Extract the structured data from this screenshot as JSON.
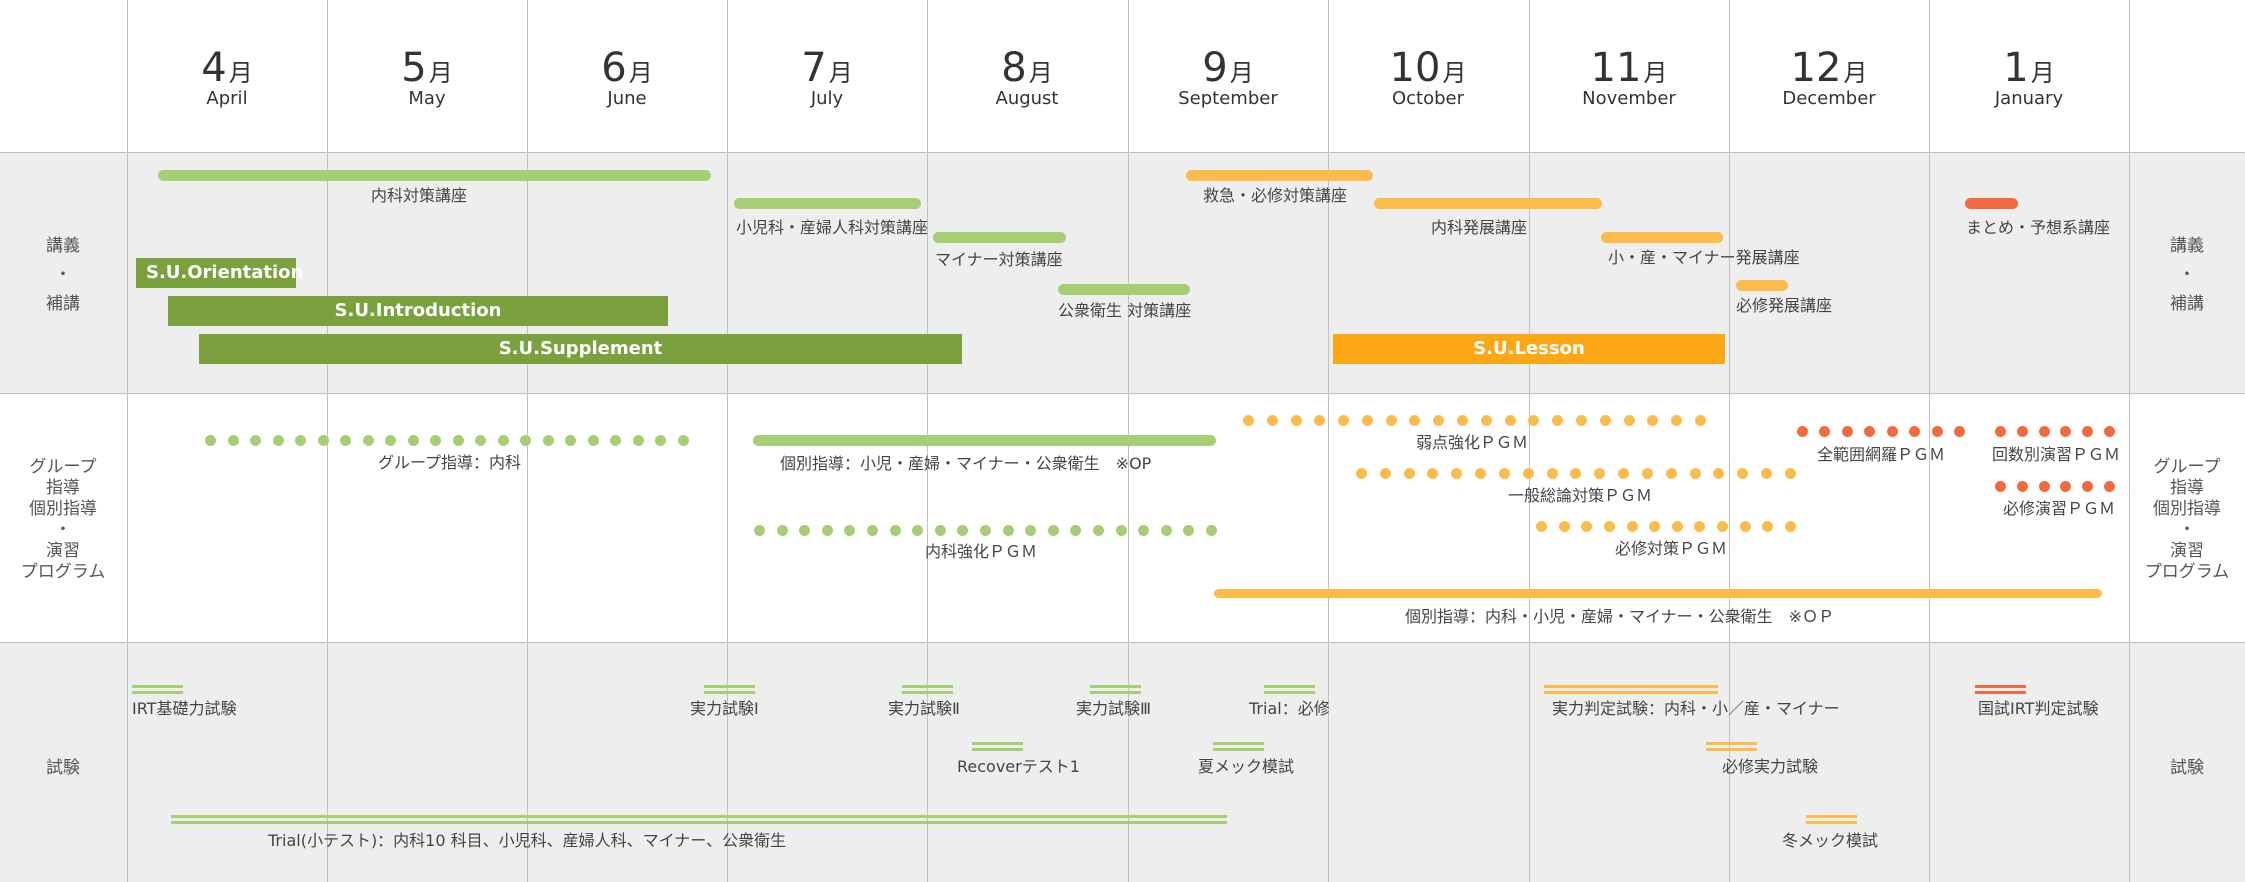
{
  "colors": {
    "light_green": "#a6ce74",
    "dark_green": "#7aa13e",
    "light_orange": "#fcbc4c",
    "dark_orange": "#fca715",
    "red": "#f26b40",
    "shade": "#eeeeee"
  },
  "months": [
    {
      "num": "4",
      "kanji": "月",
      "en": "April"
    },
    {
      "num": "5",
      "kanji": "月",
      "en": "May"
    },
    {
      "num": "6",
      "kanji": "月",
      "en": "June"
    },
    {
      "num": "7",
      "kanji": "月",
      "en": "July"
    },
    {
      "num": "8",
      "kanji": "月",
      "en": "August"
    },
    {
      "num": "9",
      "kanji": "月",
      "en": "September"
    },
    {
      "num": "10",
      "kanji": "月",
      "en": "October"
    },
    {
      "num": "11",
      "kanji": "月",
      "en": "November"
    },
    {
      "num": "12",
      "kanji": "月",
      "en": "December"
    },
    {
      "num": "1",
      "kanji": "月",
      "en": "January"
    }
  ],
  "row_labels": {
    "lecture": [
      "講義",
      "・",
      "補講"
    ],
    "group": [
      "グループ",
      "指導",
      "個別指導",
      "・",
      "演習",
      "プログラム"
    ],
    "exam": [
      "試験"
    ]
  },
  "lectures": {
    "naika_taisaku": "内科対策講座",
    "shouni_sanfu": "小児科・産婦人科対策講座",
    "minor_taisaku": "マイナー対策講座",
    "koshu_eisei": "公衆衛生 対策講座",
    "kyukyu": "救急・必修対策講座",
    "naika_hatten": "内科発展講座",
    "sho_san_minor": "小・産・マイナー発展講座",
    "hisshu_hatten": "必修発展講座",
    "matome": "まとめ・予想系講座",
    "su_orientation": "S.U.Orientation",
    "su_introduction": "S.U.Introduction",
    "su_supplement": "S.U.Supplement",
    "su_lesson": "S.U.Lesson"
  },
  "programs": {
    "group_naika": "グループ指導：内科",
    "kobetsu_1": "個別指導：小児・産婦・マイナー・公衆衛生　※OP",
    "naika_kyouka": "内科強化ＰＧＭ",
    "jakuten": "弱点強化ＰＧＭ",
    "ippan_souron": "一般総論対策ＰＧＭ",
    "hisshu_taisaku": "必修対策ＰＧＭ",
    "zenhani": "全範囲網羅ＰＧＭ",
    "kaisuubetsu": "回数別演習ＰＧＭ",
    "hisshu_enshu": "必修演習ＰＧＭ",
    "kobetsu_2": "個別指導：内科・小児・産婦・マイナー・公衆衛生　※ＯＰ"
  },
  "exams": {
    "irt_kiso": "IRT基礎力試験",
    "jitsuryoku_1": "実力試験Ⅰ",
    "jitsuryoku_2": "実力試験Ⅱ",
    "jitsuryoku_3": "実力試験Ⅲ",
    "trial_hisshu": "Trial：必修",
    "hantei": "実力判定試験：内科・小／産・マイナー",
    "kokushi_irt": "国試IRT判定試験",
    "recover": "Recoverテスト1",
    "natsu_mec": "夏メック模試",
    "hisshu_jitsuryoku": "必修実力試験",
    "trial_small": "Trial(小テスト)：内科10 科目、小児科、産婦人科、マイナー、公衆衛生",
    "fuyu_mec": "冬メック模試"
  }
}
